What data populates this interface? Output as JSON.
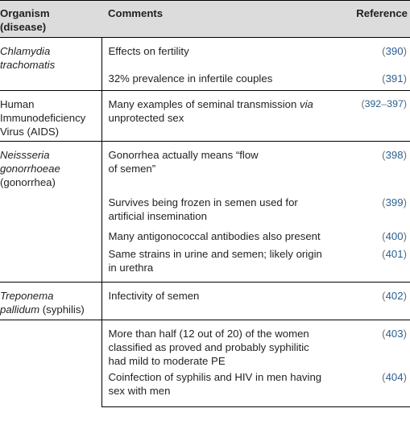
{
  "headers": {
    "organism_line1": "Organism",
    "organism_line2": "(disease)",
    "comments": "Comments",
    "reference": "Reference"
  },
  "rows": [
    {
      "organism_italic": "Chlamydia",
      "organism_italic_2": "trachomatis",
      "organism_plain": "",
      "comment": "Effects on fertility",
      "ref": "390"
    },
    {
      "comment": "32% prevalence in infertile couples",
      "ref": "391"
    },
    {
      "organism_plain_1": "Human",
      "organism_plain_2": "Immunodeficiency",
      "organism_plain_3": "Virus (AIDS)",
      "comment_1": "Many examples of seminal transmission ",
      "comment_italic": "via",
      "comment_2": "unprotected sex",
      "ref_start": "392",
      "ref_end": "397"
    },
    {
      "organism_italic": "Neissseria",
      "organism_italic_2": "gonorrhoeae",
      "organism_plain": "(gonorrhea)",
      "comment_1": "Gonorrhea actually means “flow",
      "comment_2": "of semen”",
      "ref": "398"
    },
    {
      "comment_1": "Survives being frozen in semen used for",
      "comment_2": "artificial insemination",
      "ref": "399"
    },
    {
      "comment": "Many antigonococcal antibodies also present",
      "ref": "400"
    },
    {
      "comment_1": "Same strains in urine and semen; likely origin",
      "comment_2": "in urethra",
      "ref": "401"
    },
    {
      "organism_italic": "Treponema",
      "organism_italic_2": "pallidum",
      "organism_plain": " (syphilis)",
      "comment": "Infectivity of semen",
      "ref": "402"
    },
    {
      "comment_1": "More than half (12 out of 20) of the women",
      "comment_2": "classified as proved and probably syphilitic",
      "comment_3": "had mild to moderate PE",
      "ref": "403"
    },
    {
      "comment_1": "Coinfection of syphilis and HIV in men having",
      "comment_2": "sex with men",
      "ref": "404"
    }
  ]
}
